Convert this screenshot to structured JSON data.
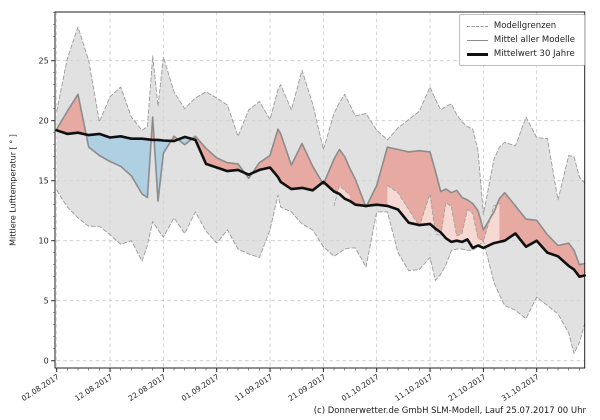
{
  "figure": {
    "caption": "(c) Donnerwetter.de GmbH SLM-Modell, Lauf 25.07.2017 00 Uhr"
  },
  "legend": {
    "position": "upper right",
    "items": [
      {
        "label": "Modellgrenzen",
        "style": "dashed-gray"
      },
      {
        "label": "Mittel aller Modelle",
        "style": "solid-gray"
      },
      {
        "label": "Mittelwert 30 Jahre",
        "style": "solid-black-thick"
      }
    ]
  },
  "chart_data": {
    "type": "line",
    "title": "",
    "xlabel": "",
    "ylabel": "Mittlere Lufttemperatur [ ° ]",
    "grid": true,
    "ylim": [
      -0.7,
      29.2
    ],
    "xlim_days": [
      0,
      99
    ],
    "y_ticks": [
      0,
      5,
      10,
      15,
      20,
      25
    ],
    "x_ticks": [
      {
        "day": 0,
        "label": "02.08.2017"
      },
      {
        "day": 10,
        "label": "12.08.2017"
      },
      {
        "day": 20,
        "label": "22.08.2017"
      },
      {
        "day": 30,
        "label": "01.09.2017"
      },
      {
        "day": 40,
        "label": "11.09.2017"
      },
      {
        "day": 50,
        "label": "21.09.2017"
      },
      {
        "day": 60,
        "label": "01.10.2017"
      },
      {
        "day": 70,
        "label": "11.10.2017"
      },
      {
        "day": 80,
        "label": "21.10.2017"
      },
      {
        "day": 90,
        "label": "31.10.2017"
      }
    ],
    "x_minor_tick_step_days": 2,
    "colors": {
      "band": "#d6d6d6",
      "bound_line": "#9a9a9a",
      "model_mean_line": "#8c8c8c",
      "climate_mean_line": "#101010",
      "warm_fill": "#e7a49b",
      "warm_fill_light": "#f6d9d3",
      "cool_fill": "#abcfe2",
      "grid_line": "#c9c9c9"
    },
    "x_days": [
      0,
      2,
      4,
      6,
      8,
      10,
      12,
      14,
      16,
      17,
      18,
      19,
      20,
      22,
      24,
      26,
      28,
      30,
      32,
      34,
      36,
      38,
      40,
      41.5,
      42,
      44,
      46,
      48,
      50,
      52,
      53,
      54,
      55,
      56,
      58,
      60,
      62,
      64,
      66,
      68,
      70,
      71,
      72,
      73,
      74,
      75,
      76,
      77,
      78,
      79,
      80,
      82,
      83,
      84,
      86,
      88,
      90,
      92,
      94,
      96,
      97,
      98,
      99
    ],
    "series": [
      {
        "name": "Modellgrenzen (Obergrenze)",
        "role": "upper_bound",
        "line": "dashed",
        "values": [
          20.8,
          25.2,
          27.8,
          25.0,
          19.9,
          22.0,
          22.8,
          20.3,
          19.2,
          19.5,
          25.4,
          21.2,
          25.3,
          22.4,
          21.0,
          21.9,
          22.4,
          21.9,
          21.3,
          18.7,
          20.9,
          21.6,
          20.1,
          22.6,
          23.0,
          20.9,
          24.2,
          21.4,
          17.6,
          20.6,
          21.5,
          22.2,
          21.3,
          20.4,
          20.6,
          19.2,
          18.4,
          19.4,
          20.1,
          20.8,
          22.8,
          21.8,
          20.9,
          21.2,
          21.4,
          20.5,
          19.9,
          19.5,
          19.3,
          17.5,
          12.2,
          16.8,
          17.8,
          18.2,
          17.9,
          20.3,
          18.6,
          18.5,
          13.4,
          17.1,
          17.0,
          15.3,
          14.8
        ]
      },
      {
        "name": "Modellgrenzen (Untergrenze)",
        "role": "lower_bound",
        "line": "dashed",
        "values": [
          14.2,
          12.8,
          11.9,
          11.2,
          11.2,
          10.5,
          9.7,
          10.0,
          8.3,
          9.6,
          11.6,
          10.9,
          10.3,
          11.9,
          10.6,
          12.4,
          10.8,
          9.8,
          10.9,
          9.3,
          8.9,
          8.6,
          10.9,
          13.8,
          12.8,
          12.4,
          11.4,
          10.9,
          9.5,
          8.7,
          9.0,
          9.3,
          9.4,
          9.4,
          7.8,
          12.4,
          12.4,
          9.0,
          7.5,
          7.6,
          8.6,
          6.7,
          7.2,
          8.0,
          9.2,
          9.3,
          9.3,
          9.2,
          9.2,
          9.5,
          10.0,
          6.5,
          5.5,
          4.6,
          4.2,
          3.5,
          5.3,
          4.6,
          3.9,
          2.3,
          0.6,
          1.5,
          3.1
        ]
      },
      {
        "name": "Modellgrenze (innere)",
        "role": "inner_bound",
        "line": "dashed",
        "values": [
          null,
          null,
          null,
          null,
          null,
          null,
          null,
          null,
          null,
          null,
          null,
          null,
          null,
          null,
          null,
          null,
          null,
          null,
          null,
          null,
          null,
          null,
          null,
          null,
          null,
          null,
          null,
          null,
          null,
          12.9,
          14.6,
          14.2,
          13.8,
          null,
          null,
          null,
          14.6,
          14.0,
          12.6,
          11.2,
          13.9,
          10.6,
          10.4,
          13.2,
          12.8,
          10.4,
          10.6,
          12.6,
          12.3,
          10.2,
          10.0,
          12.9,
          13.1,
          null,
          null,
          null,
          null,
          null,
          null,
          null,
          null,
          null,
          null
        ]
      },
      {
        "name": "Mittel aller Modelle",
        "role": "model_mean",
        "line": "solid",
        "values": [
          19.3,
          20.8,
          22.2,
          17.8,
          17.1,
          16.6,
          16.2,
          15.4,
          13.9,
          13.6,
          20.3,
          13.3,
          17.3,
          18.7,
          18.0,
          18.7,
          17.7,
          16.9,
          16.5,
          16.4,
          15.2,
          16.5,
          17.1,
          19.3,
          18.9,
          16.3,
          18.1,
          16.2,
          14.7,
          16.8,
          17.6,
          17.0,
          16.0,
          15.1,
          12.8,
          14.6,
          17.8,
          17.6,
          17.4,
          17.5,
          17.4,
          15.8,
          14.1,
          14.3,
          14.0,
          14.2,
          13.6,
          13.4,
          13.1,
          12.5,
          10.9,
          12.4,
          13.5,
          14.0,
          12.9,
          11.8,
          11.7,
          10.5,
          9.6,
          9.8,
          9.2,
          8.0,
          8.1
        ]
      },
      {
        "name": "Mittelwert 30 Jahre",
        "role": "climate_mean",
        "line": "solid-thick",
        "values": [
          19.2,
          18.9,
          19.0,
          18.8,
          18.9,
          18.6,
          18.7,
          18.5,
          18.5,
          18.45,
          18.4,
          18.4,
          18.35,
          18.3,
          18.65,
          18.4,
          16.4,
          16.1,
          15.8,
          15.9,
          15.5,
          15.9,
          16.1,
          15.3,
          14.9,
          14.3,
          14.4,
          14.2,
          14.9,
          14.1,
          13.9,
          13.5,
          13.3,
          13.0,
          12.9,
          13.0,
          12.9,
          12.6,
          11.5,
          11.3,
          11.4,
          11.0,
          10.7,
          10.2,
          9.9,
          10.0,
          9.9,
          10.1,
          9.4,
          9.6,
          9.4,
          9.8,
          9.9,
          10.0,
          10.6,
          9.5,
          10.0,
          9.0,
          8.7,
          7.9,
          7.6,
          7.0,
          7.1
        ]
      }
    ],
    "fills": {
      "band_between": [
        "upper_bound",
        "lower_bound"
      ],
      "warm_between": [
        "model_mean",
        "climate_mean"
      ],
      "cool_between": [
        "climate_mean",
        "model_mean"
      ],
      "warm_light_between": [
        "inner_bound",
        "climate_mean"
      ]
    }
  }
}
